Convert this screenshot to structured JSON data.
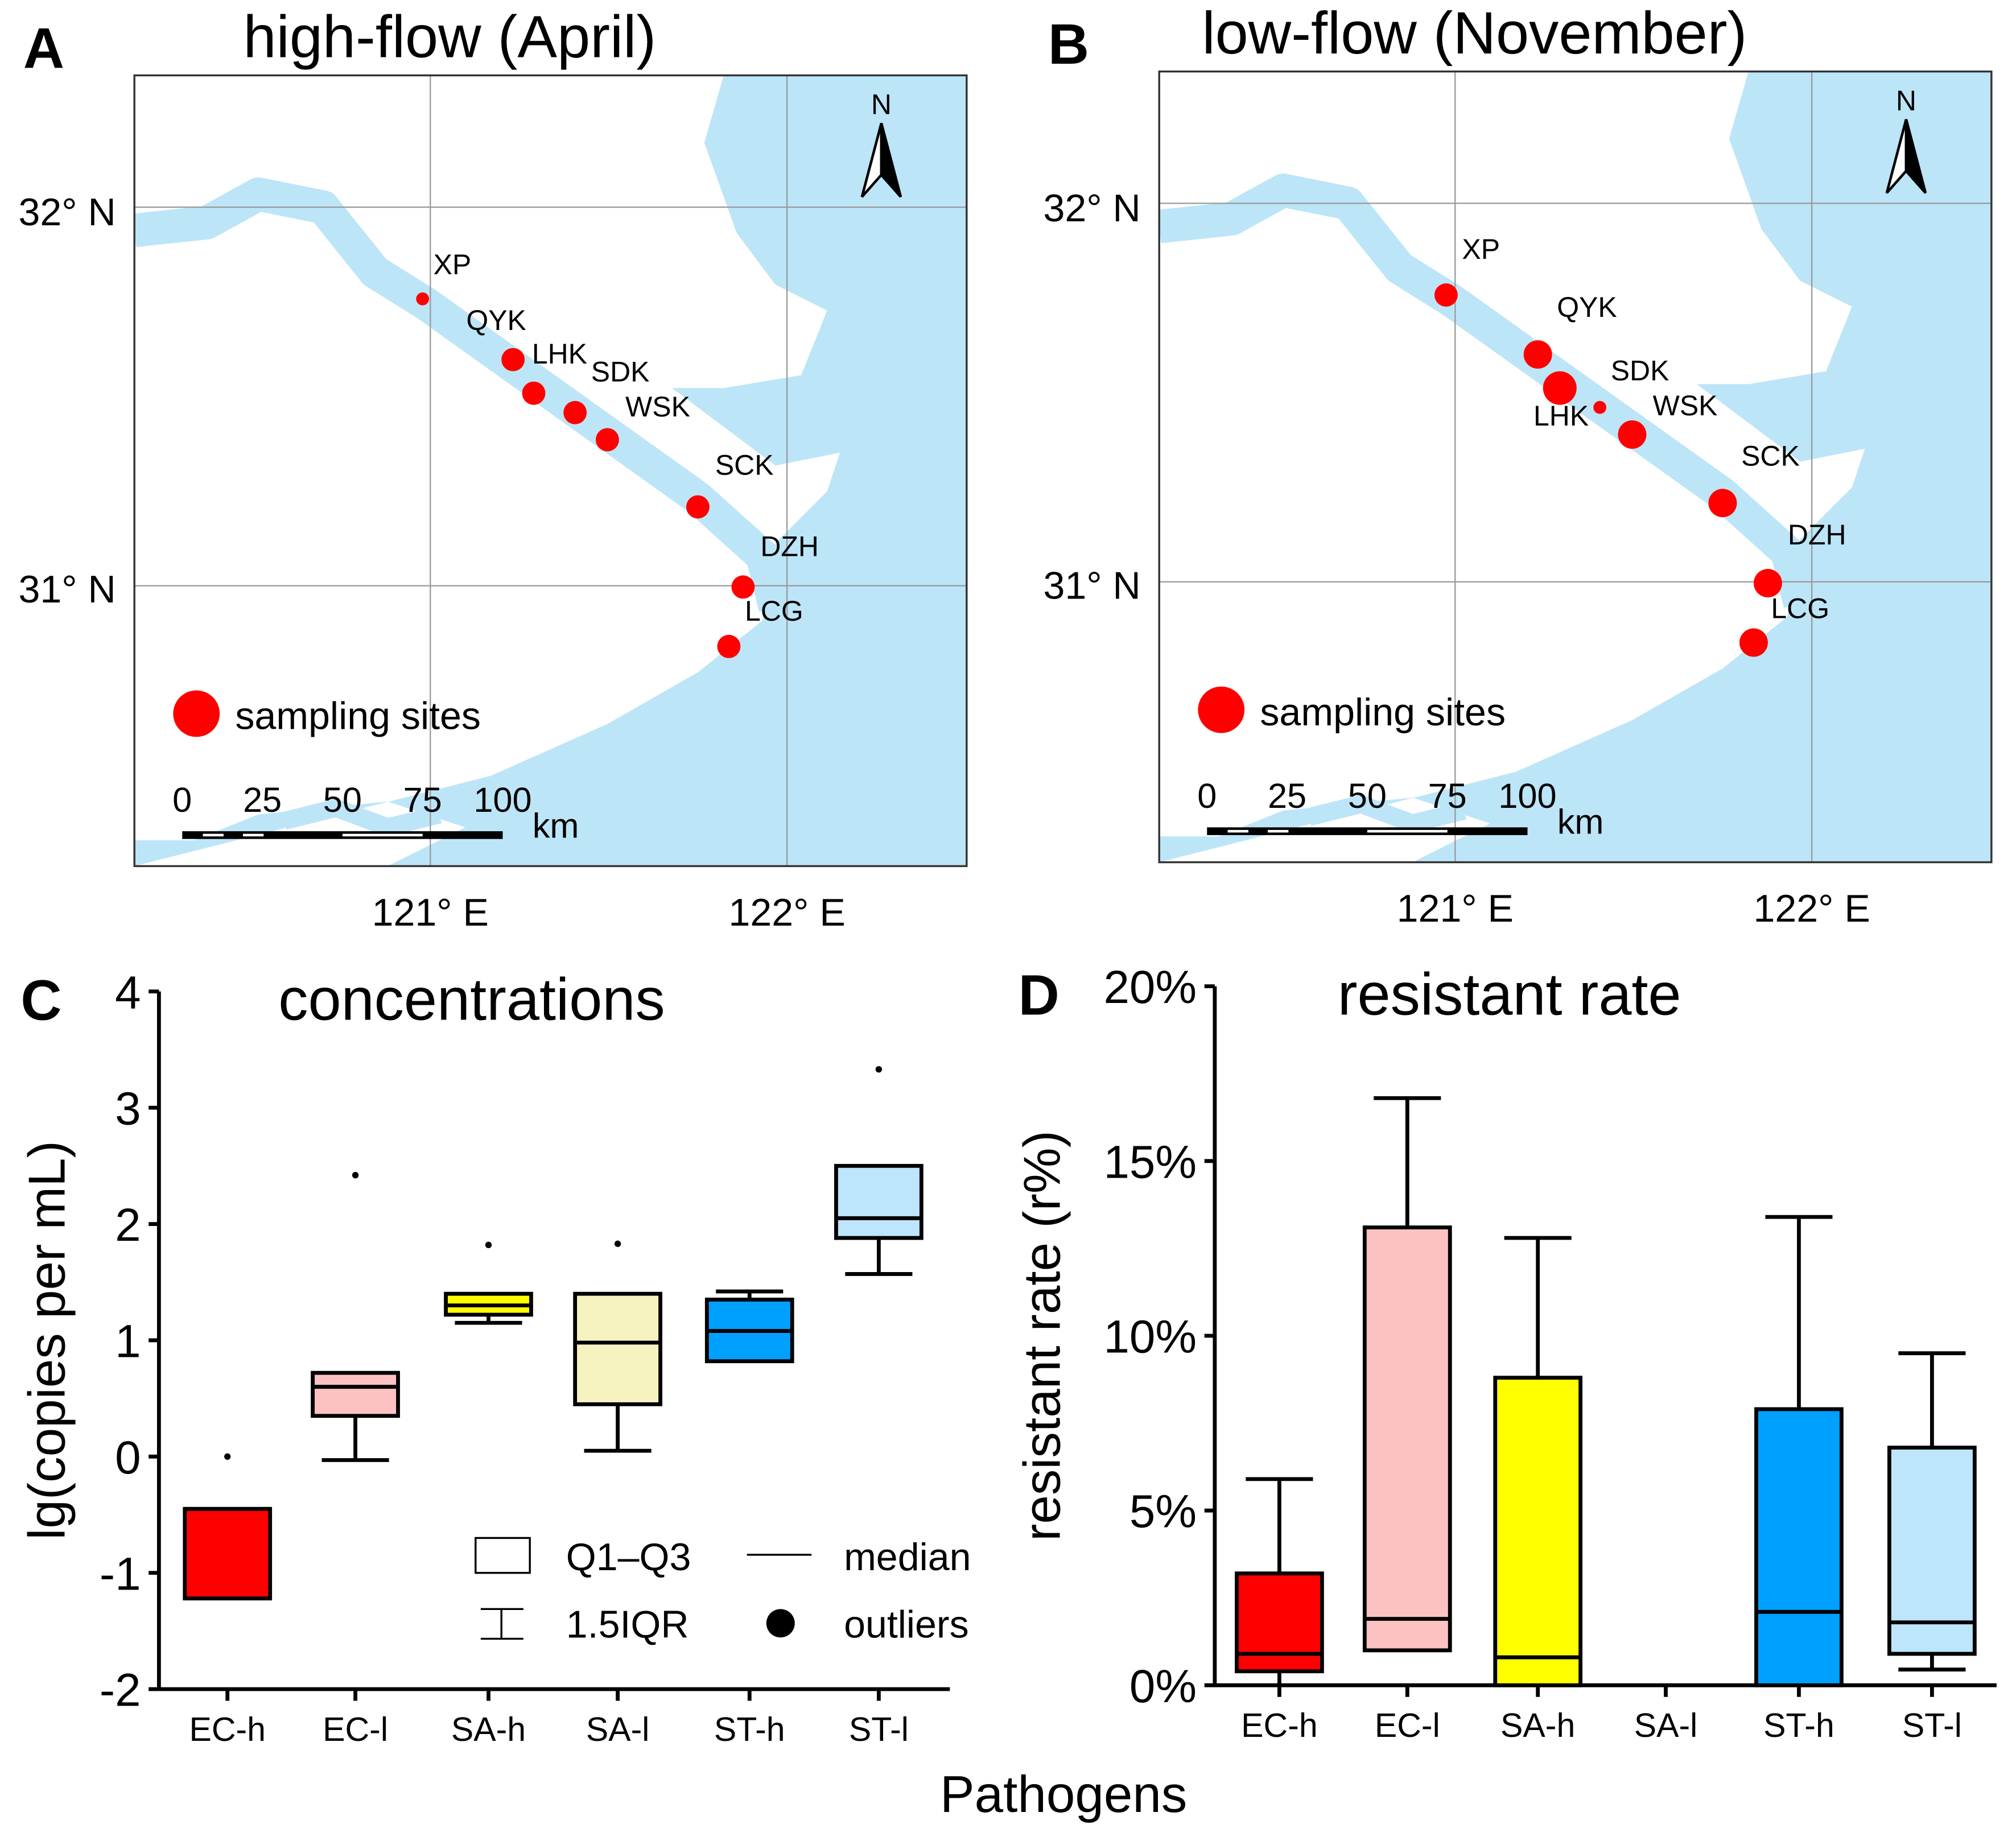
{
  "colors": {
    "sea": "#bde5f8",
    "land": "#ffffff",
    "site": "#ff0000",
    "grid": "#999999"
  },
  "chart_data": [
    {
      "type": "map",
      "panel": "A",
      "title": "high-flow (April)",
      "lat_labels": [
        "32° N",
        "31° N"
      ],
      "lon_labels": [
        "121° E",
        "122° E"
      ],
      "north_label": "N",
      "legend": "sampling sites",
      "scale_labels": [
        "0",
        "25",
        "50",
        "75",
        "100"
      ],
      "scale_unit": "km",
      "sites": [
        "XP",
        "QYK",
        "LHK",
        "SDK",
        "WSK",
        "SCK",
        "DZH",
        "LCG"
      ]
    },
    {
      "type": "map",
      "panel": "B",
      "title": "low-flow (November)",
      "lat_labels": [
        "32° N",
        "31° N"
      ],
      "lon_labels": [
        "121° E",
        "122° E"
      ],
      "north_label": "N",
      "legend": "sampling sites",
      "scale_labels": [
        "0",
        "25",
        "50",
        "75",
        "100"
      ],
      "scale_unit": "km",
      "sites": [
        "XP",
        "QYK",
        "LHK",
        "SDK",
        "WSK",
        "SCK",
        "DZH",
        "LCG"
      ]
    },
    {
      "type": "box",
      "panel": "C",
      "title": "concentrations",
      "ylabel": "lg(copies per mL)",
      "ylim": [
        -2,
        4
      ],
      "yticks": [
        "-2",
        "-1",
        "0",
        "1",
        "2",
        "3",
        "4"
      ],
      "categories": [
        "EC-h",
        "EC-l",
        "SA-h",
        "SA-l",
        "ST-h",
        "ST-l"
      ],
      "fills": [
        "#ff0000",
        "#fcc2c2",
        "#ffff00",
        "#f6f3c0",
        "#00a0ff",
        "#bde5fb"
      ],
      "boxes": [
        {
          "q1": -1.22,
          "median": -0.45,
          "q3": -0.45,
          "low": -1.22,
          "high": -0.45,
          "outliers": [
            0.0
          ]
        },
        {
          "q1": 0.35,
          "median": 0.6,
          "q3": 0.72,
          "low": -0.03,
          "high": 0.72,
          "outliers": [
            2.42
          ]
        },
        {
          "q1": 1.22,
          "median": 1.3,
          "q3": 1.4,
          "low": 1.15,
          "high": 1.4,
          "outliers": [
            1.82
          ]
        },
        {
          "q1": 0.45,
          "median": 0.98,
          "q3": 1.4,
          "low": 0.05,
          "high": 1.4,
          "outliers": [
            1.83
          ]
        },
        {
          "q1": 0.82,
          "median": 1.08,
          "q3": 1.35,
          "low": 0.82,
          "high": 1.42,
          "outliers": []
        },
        {
          "q1": 1.88,
          "median": 2.05,
          "q3": 2.5,
          "low": 1.57,
          "high": 2.5,
          "outliers": [
            3.33
          ]
        }
      ],
      "legend": {
        "box": "Q1–Q3",
        "median": "median",
        "whisker": "1.5IQR",
        "outliers": "outliers"
      }
    },
    {
      "type": "box",
      "panel": "D",
      "title": "resistant rate",
      "ylabel": "resistant rate (r%)",
      "ylim": [
        0,
        20
      ],
      "yticks": [
        "0%",
        "5%",
        "10%",
        "15%",
        "20%"
      ],
      "categories": [
        "EC-h",
        "EC-l",
        "SA-h",
        "SA-l",
        "ST-h",
        "ST-l"
      ],
      "fills": [
        "#ff0000",
        "#fcc2c2",
        "#ffff00",
        "#f6f3c0",
        "#00a0ff",
        "#bde5fb"
      ],
      "boxes": [
        {
          "q1": 0.4,
          "median": 0.9,
          "q3": 3.2,
          "low": 0,
          "high": 5.9,
          "outliers": []
        },
        {
          "q1": 1.0,
          "median": 1.9,
          "q3": 13.1,
          "low": 1.0,
          "high": 16.8,
          "outliers": []
        },
        {
          "q1": 0,
          "median": 0.8,
          "q3": 8.8,
          "low": 0,
          "high": 12.8,
          "outliers": []
        },
        {
          "q1": 0,
          "median": 0,
          "q3": 0,
          "low": 0,
          "high": 0,
          "outliers": []
        },
        {
          "q1": 0,
          "median": 2.1,
          "q3": 7.9,
          "low": 0,
          "high": 13.4,
          "outliers": []
        },
        {
          "q1": 0.9,
          "median": 1.8,
          "q3": 6.8,
          "low": 0.45,
          "high": 9.5,
          "outliers": []
        }
      ]
    }
  ],
  "shared_xlabel": "Pathogens"
}
